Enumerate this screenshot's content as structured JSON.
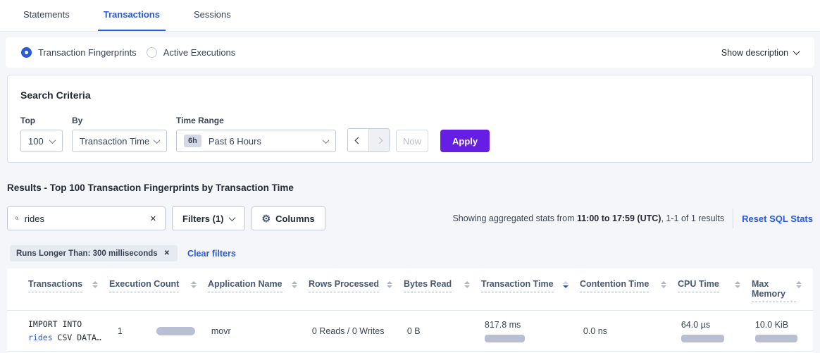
{
  "tabs": [
    {
      "label": "Statements",
      "active": false
    },
    {
      "label": "Transactions",
      "active": true
    },
    {
      "label": "Sessions",
      "active": false
    }
  ],
  "view_toggle": {
    "options": [
      {
        "label": "Transaction Fingerprints",
        "selected": true
      },
      {
        "label": "Active Executions",
        "selected": false
      }
    ],
    "show_description_label": "Show description"
  },
  "search_criteria": {
    "title": "Search Criteria",
    "top": {
      "label": "Top",
      "value": "100"
    },
    "by": {
      "label": "By",
      "value": "Transaction Time"
    },
    "time_range": {
      "label": "Time Range",
      "badge": "6h",
      "value": "Past 6 Hours"
    },
    "now_label": "Now",
    "apply_label": "Apply"
  },
  "results": {
    "title": "Results - Top 100 Transaction Fingerprints by Transaction Time",
    "search": {
      "value": "rides",
      "clear_icon": "✕"
    },
    "filters_label": "Filters (1)",
    "columns_label": "Columns",
    "gear_glyph": "⚙",
    "stats": {
      "prefix": "Showing aggregated stats from ",
      "range_bold": "11:00 to 17:59 (UTC)",
      "suffix": ", 1-1 of 1 results"
    },
    "reset_label": "Reset SQL Stats",
    "filter_chip": "Runs Longer Than: 300 milliseconds",
    "clear_filters_label": "Clear filters"
  },
  "table": {
    "columns": [
      {
        "label": "Transactions",
        "sort": "none"
      },
      {
        "label": "Execution Count",
        "sort": "none"
      },
      {
        "label": "Application Name",
        "sort": "none"
      },
      {
        "label": "Rows Processed",
        "sort": "none"
      },
      {
        "label": "Bytes Read",
        "sort": "none"
      },
      {
        "label": "Transaction Time",
        "sort": "desc"
      },
      {
        "label": "Contention Time",
        "sort": "none"
      },
      {
        "label": "CPU Time",
        "sort": "none"
      },
      {
        "label": "Max Memory",
        "sort": "none"
      }
    ],
    "rows": [
      {
        "transaction_line1": "IMPORT INTO",
        "transaction_link": "rides",
        "transaction_line2_rest": " CSV DATA…",
        "execution_count": "1",
        "execution_count_bar": 55,
        "application_name": "movr",
        "rows_processed": "0 Reads / 0 Writes",
        "bytes_read": "0 B",
        "transaction_time": "817.8 ms",
        "transaction_time_bar": 57,
        "contention_time": "0.0 ns",
        "cpu_time": "64.0 µs",
        "cpu_time_bar": 61,
        "max_memory": "10.0 KiB",
        "max_memory_bar": 60
      }
    ]
  },
  "colors": {
    "accent_blue": "#2a5adb",
    "accent_purple": "#671ee4",
    "bar_fill": "#b8bfd3",
    "page_bg": "#f4f6fa"
  }
}
